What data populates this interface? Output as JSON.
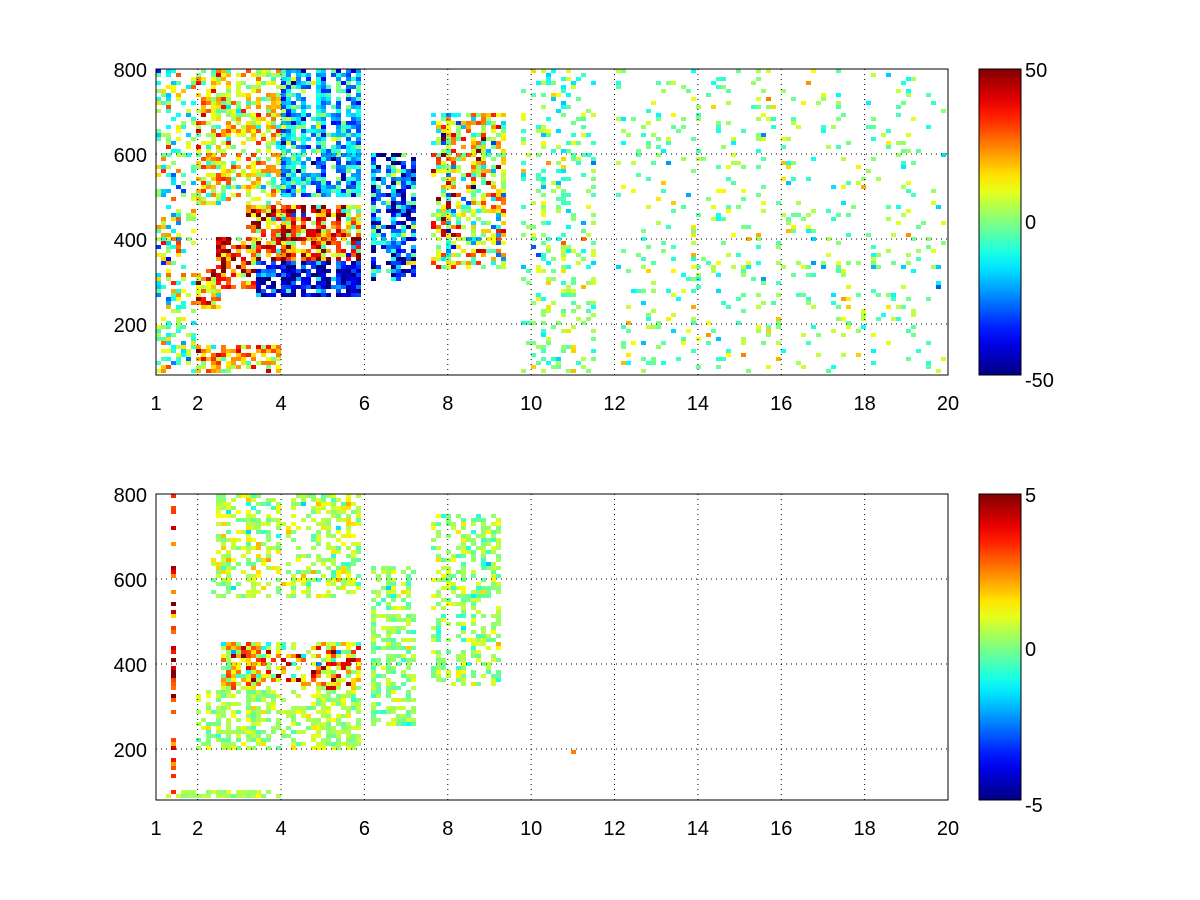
{
  "chart_data": [
    {
      "type": "heatmap",
      "title": "",
      "xlabel": "",
      "ylabel": "",
      "xlim": [
        1,
        20
      ],
      "ylim": [
        80,
        800
      ],
      "x_ticks": [
        1,
        2,
        4,
        6,
        8,
        10,
        12,
        14,
        16,
        18,
        20
      ],
      "y_ticks": [
        200,
        400,
        600,
        800
      ],
      "grid": true,
      "colormap": "jet",
      "colorbar": {
        "min": -50,
        "max": 50,
        "ticks": [
          50,
          0,
          -50
        ]
      },
      "density": 0.55,
      "seed": 11,
      "regions": [
        {
          "x": [
            1.1,
            2.6
          ],
          "y": [
            240,
            330
          ],
          "value": 22,
          "spread": 18,
          "density": 0.95
        },
        {
          "x": [
            2.4,
            3.8
          ],
          "y": [
            280,
            400
          ],
          "value": 35,
          "spread": 15,
          "density": 1.0
        },
        {
          "x": [
            3.4,
            5.9
          ],
          "y": [
            260,
            350
          ],
          "value": -38,
          "spread": 12,
          "density": 1.0
        },
        {
          "x": [
            3.2,
            5.9
          ],
          "y": [
            350,
            480
          ],
          "value": 28,
          "spread": 22,
          "density": 0.95
        },
        {
          "x": [
            2.0,
            4.0
          ],
          "y": [
            480,
            800
          ],
          "value": 12,
          "spread": 14,
          "density": 0.75
        },
        {
          "x": [
            4.0,
            5.9
          ],
          "y": [
            500,
            800
          ],
          "value": -18,
          "spread": 14,
          "density": 0.9
        },
        {
          "x": [
            6.2,
            7.2
          ],
          "y": [
            300,
            600
          ],
          "value": -28,
          "spread": 20,
          "density": 0.9
        },
        {
          "x": [
            7.6,
            9.4
          ],
          "y": [
            330,
            700
          ],
          "value": 10,
          "spread": 20,
          "density": 0.75
        },
        {
          "x": [
            1.0,
            1.9
          ],
          "y": [
            80,
            800
          ],
          "value": 0,
          "spread": 15,
          "density": 0.45
        },
        {
          "x": [
            2.0,
            4.0
          ],
          "y": [
            80,
            150
          ],
          "value": 18,
          "spread": 12,
          "density": 0.85
        },
        {
          "x": [
            9.7,
            11.6
          ],
          "y": [
            80,
            800
          ],
          "value": 0,
          "spread": 10,
          "density": 0.3
        },
        {
          "x": [
            12.0,
            20.0
          ],
          "y": [
            80,
            800
          ],
          "value": 0,
          "spread": 9,
          "density": 0.12
        }
      ]
    },
    {
      "type": "heatmap",
      "title": "",
      "xlabel": "",
      "ylabel": "",
      "xlim": [
        1,
        20
      ],
      "ylim": [
        80,
        800
      ],
      "x_ticks": [
        1,
        2,
        4,
        6,
        8,
        10,
        12,
        14,
        16,
        18,
        20
      ],
      "y_ticks": [
        200,
        400,
        600,
        800
      ],
      "grid": true,
      "colormap": "jet",
      "colorbar": {
        "min": -5,
        "max": 5,
        "ticks": [
          5,
          0,
          -5
        ]
      },
      "density": 0.0,
      "seed": 29,
      "regions": [
        {
          "x": [
            2.5,
            5.9
          ],
          "y": [
            330,
            450
          ],
          "value": 2.0,
          "spread": 1.6,
          "density": 0.8
        },
        {
          "x": [
            1.9,
            5.9
          ],
          "y": [
            200,
            340
          ],
          "value": 0.4,
          "spread": 0.5,
          "density": 0.75
        },
        {
          "x": [
            2.3,
            5.9
          ],
          "y": [
            560,
            800
          ],
          "value": 0.5,
          "spread": 0.7,
          "density": 0.6
        },
        {
          "x": [
            6.2,
            7.2
          ],
          "y": [
            250,
            630
          ],
          "value": 0.2,
          "spread": 0.6,
          "density": 0.75
        },
        {
          "x": [
            7.6,
            9.3
          ],
          "y": [
            350,
            750
          ],
          "value": 0.3,
          "spread": 0.6,
          "density": 0.55
        },
        {
          "x": [
            1.0,
            4.0
          ],
          "y": [
            80,
            100
          ],
          "value": 0.4,
          "spread": 0.3,
          "density": 0.9
        },
        {
          "x": [
            1.35,
            1.45
          ],
          "y": [
            80,
            800
          ],
          "value": 3.5,
          "spread": 1.0,
          "density": 0.9
        },
        {
          "x": [
            11.0,
            11.1
          ],
          "y": [
            190,
            200
          ],
          "value": 2.5,
          "spread": 0.3,
          "density": 1.0
        }
      ]
    }
  ]
}
